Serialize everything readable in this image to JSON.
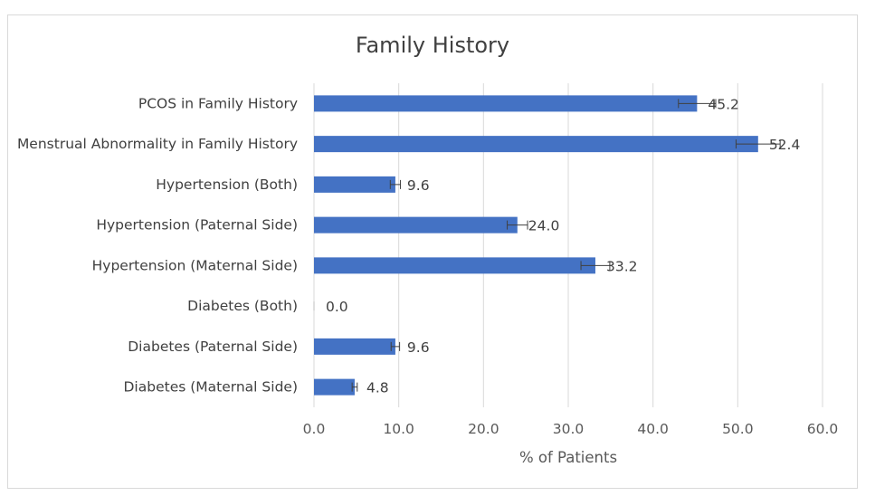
{
  "chart_data": {
    "type": "bar",
    "orientation": "horizontal",
    "title": "Family History",
    "xlabel": "% of Patients",
    "ylabel": "",
    "categories": [
      "PCOS in Family History",
      "Menstrual Abnormality in Family History",
      "Hypertension (Both)",
      "Hypertension (Paternal Side)",
      "Hypertension (Maternal Side)",
      "Diabetes (Both)",
      "Diabetes (Paternal Side)",
      "Diabetes (Maternal Side)"
    ],
    "values": [
      45.2,
      52.4,
      9.6,
      24.0,
      33.2,
      0.0,
      9.6,
      4.8
    ],
    "value_labels": [
      "45.2",
      "52.4",
      "9.6",
      "24.0",
      "33.2",
      "0.0",
      "9.6",
      "4.8"
    ],
    "error": [
      2.2,
      2.6,
      0.6,
      1.2,
      1.7,
      0.0,
      0.5,
      0.3
    ],
    "xlim": [
      0,
      60
    ],
    "xticks": [
      0,
      10,
      20,
      30,
      40,
      50,
      60
    ],
    "xtick_labels": [
      "0.0",
      "10.0",
      "20.0",
      "30.0",
      "40.0",
      "50.0",
      "60.0"
    ],
    "grid": true,
    "legend": "none",
    "colors": {
      "bar": "#4472c4",
      "grid": "#d9d9d9",
      "error_bar": "#404040"
    }
  }
}
